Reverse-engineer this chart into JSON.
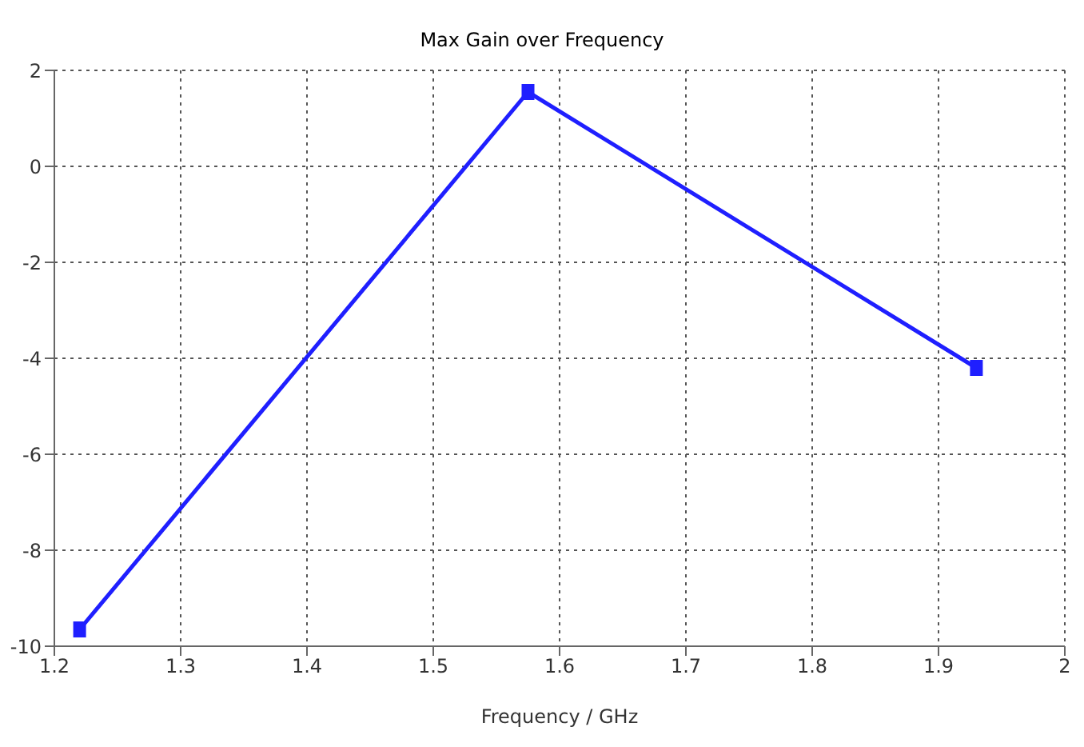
{
  "chart_data": {
    "type": "line",
    "title": "Max Gain over Frequency",
    "xlabel": "Frequency / GHz",
    "x": [
      1.22,
      1.575,
      1.93
    ],
    "series": [
      {
        "color": "#1f1fff",
        "values": [
          -9.65,
          1.55,
          -4.2
        ]
      }
    ],
    "xlim": [
      1.2,
      2
    ],
    "xticks": [
      1.2,
      1.3,
      1.4,
      1.5,
      1.6,
      1.7,
      1.8,
      1.9,
      2
    ],
    "ylim": [
      -10,
      2
    ],
    "yticks": [
      -10,
      -8,
      -6,
      -4,
      -2,
      0,
      2
    ],
    "grid": true,
    "marker": "square",
    "line_style": "solid"
  }
}
